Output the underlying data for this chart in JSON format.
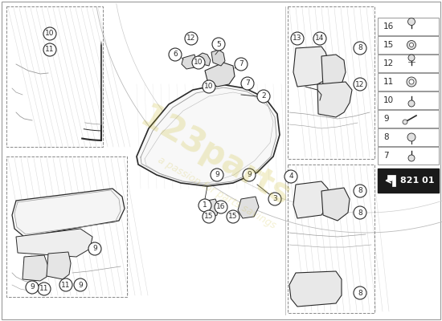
{
  "bg_color": "#ffffff",
  "line_color": "#2a2a2a",
  "light_line": "#999999",
  "hatch_color": "#cccccc",
  "part_number_label": "821 01",
  "watermark_line1": "123parts",
  "watermark_line2": "a passion for parts savings",
  "fig_w": 5.5,
  "fig_h": 4.0,
  "dpi": 100,
  "legend_numbers": [
    16,
    15,
    12,
    11,
    10,
    9,
    8,
    7
  ]
}
